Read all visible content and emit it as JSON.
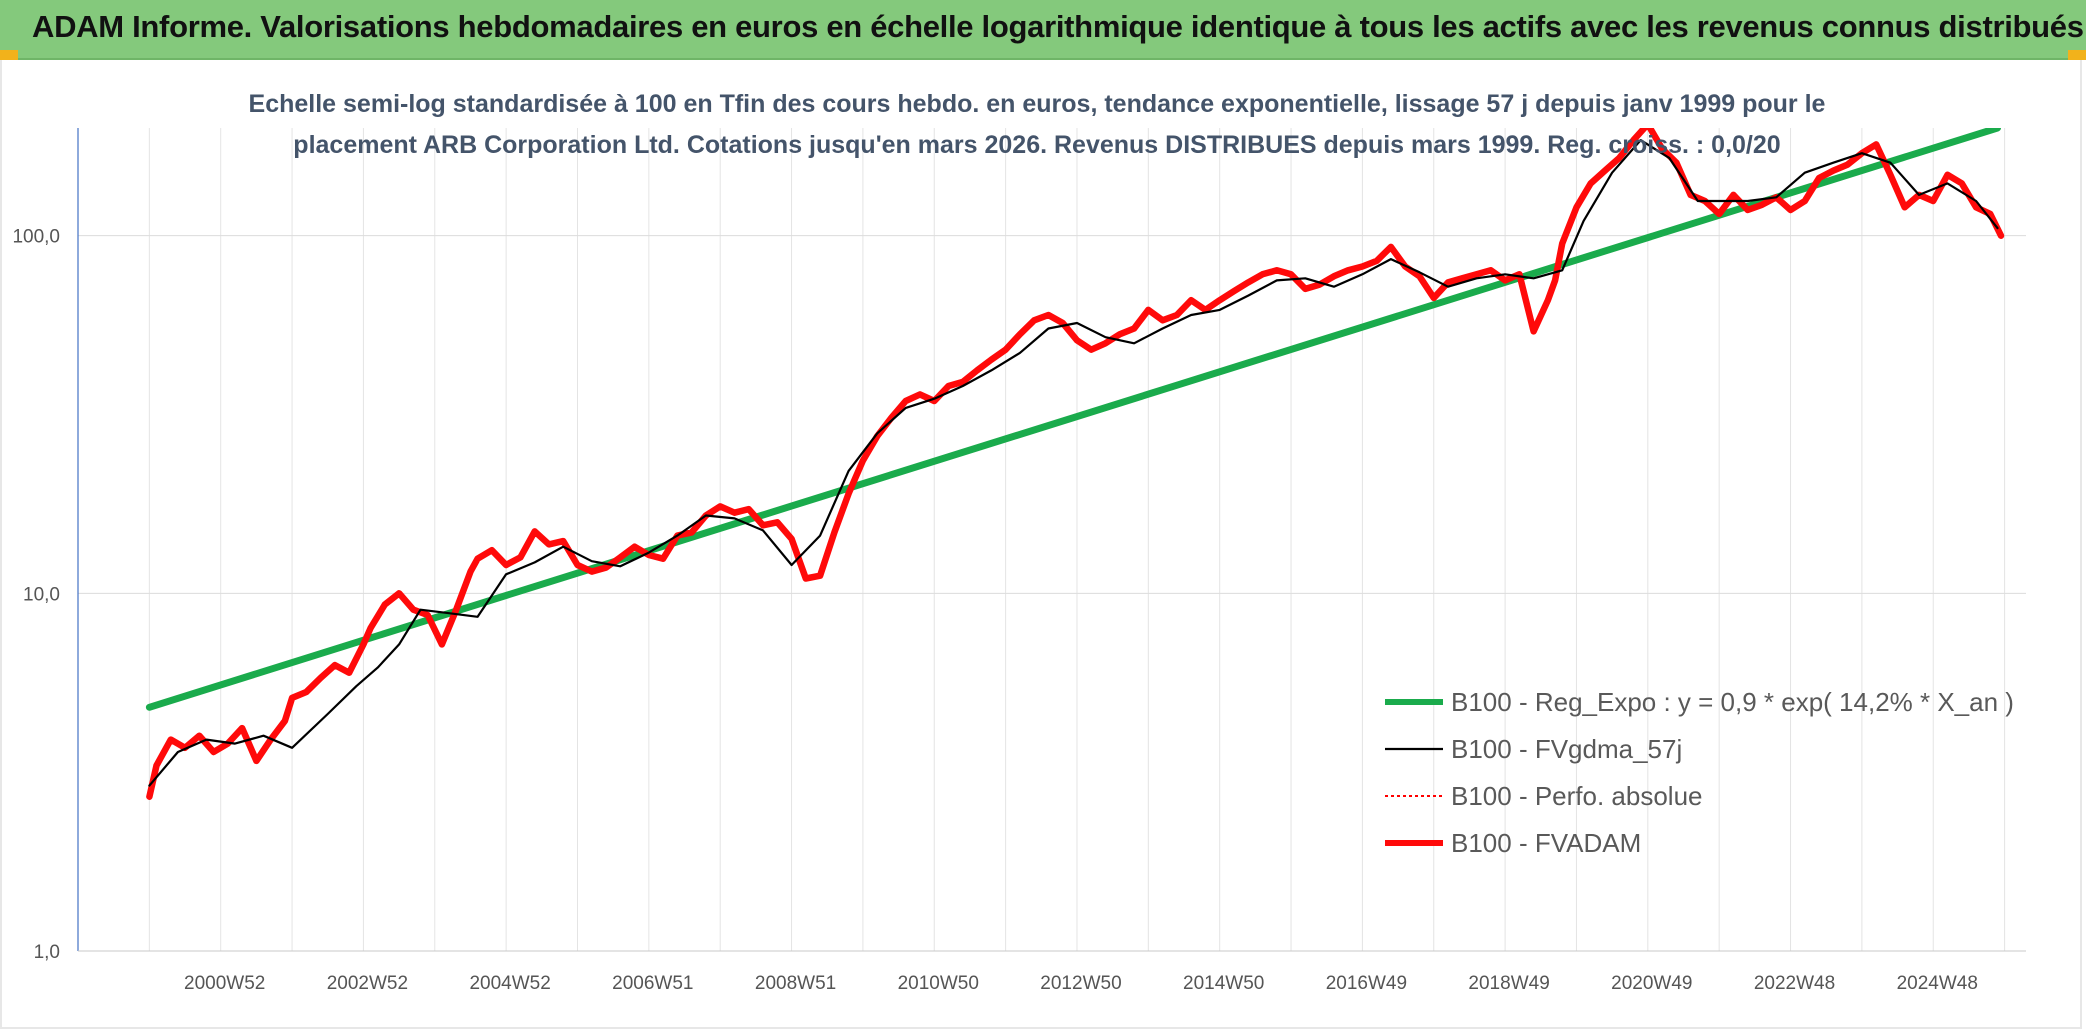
{
  "header": {
    "title": "ADAM Informe. Valorisations hebdomadaires en euros en échelle logarithmique identique à tous les actifs avec les revenus connus distribués"
  },
  "colors": {
    "header_bg": "#84c97c",
    "corner_accent": "#f2b21b",
    "regression": "#1aab4c",
    "fvgdma": "#000000",
    "perfo": "#ff0000",
    "fvadam": "#ff0a0a"
  },
  "chart_data": {
    "type": "line",
    "title_lines": [
      "Echelle semi-log standardisée à 100 en Tfin des cours hebdo. en euros, tendance exponentielle, lissage 57 j depuis janv 1999 pour le",
      "placement ARB Corporation Ltd. Cotations jusqu'en mars 2026. Revenus DISTRIBUES depuis mars 1999. Reg. croiss. : 0,0/20"
    ],
    "y_scale": "log",
    "ylim": [
      1,
      200
    ],
    "y_ticks": [
      {
        "value": 1,
        "label": "1,0"
      },
      {
        "value": 10,
        "label": "10,0"
      },
      {
        "value": 100,
        "label": "100,0"
      }
    ],
    "xlim": [
      1999.0,
      2026.3
    ],
    "x_ticks": [
      {
        "x": 2001.0,
        "label": "2000W52"
      },
      {
        "x": 2003.0,
        "label": "2002W52"
      },
      {
        "x": 2005.0,
        "label": "2004W52"
      },
      {
        "x": 2007.0,
        "label": "2006W51"
      },
      {
        "x": 2009.0,
        "label": "2008W51"
      },
      {
        "x": 2011.0,
        "label": "2010W50"
      },
      {
        "x": 2013.0,
        "label": "2012W50"
      },
      {
        "x": 2015.0,
        "label": "2014W50"
      },
      {
        "x": 2017.0,
        "label": "2016W49"
      },
      {
        "x": 2019.0,
        "label": "2018W49"
      },
      {
        "x": 2021.0,
        "label": "2020W49"
      },
      {
        "x": 2023.0,
        "label": "2022W48"
      },
      {
        "x": 2025.0,
        "label": "2024W48"
      }
    ],
    "grid": "vertical and horizontal, light gray",
    "legend_position": "lower-right",
    "series": [
      {
        "key": "regression",
        "name": "B100 - Reg_Expo : y = 0,9 * exp( 14,2% *  X_an )",
        "style": "solid-thick",
        "x": [
          2000.0,
          2025.9
        ],
        "y": [
          4.8,
          200
        ]
      },
      {
        "key": "fvgdma",
        "name": "B100 - FVgdma_57j",
        "style": "solid-thin",
        "x": [
          2000.0,
          2000.4,
          2000.8,
          2001.2,
          2001.6,
          2002.0,
          2002.5,
          2002.9,
          2003.2,
          2003.5,
          2003.8,
          2004.2,
          2004.6,
          2005.0,
          2005.4,
          2005.8,
          2006.2,
          2006.6,
          2007.0,
          2007.4,
          2007.8,
          2008.2,
          2008.6,
          2009.0,
          2009.4,
          2009.8,
          2010.2,
          2010.6,
          2011.0,
          2011.4,
          2011.8,
          2012.2,
          2012.6,
          2013.0,
          2013.4,
          2013.8,
          2014.2,
          2014.6,
          2015.0,
          2015.4,
          2015.8,
          2016.2,
          2016.6,
          2017.0,
          2017.4,
          2017.8,
          2018.2,
          2018.6,
          2019.0,
          2019.4,
          2019.8,
          2020.1,
          2020.5,
          2020.9,
          2021.3,
          2021.7,
          2022.0,
          2022.4,
          2022.8,
          2023.2,
          2023.6,
          2024.0,
          2024.4,
          2024.8,
          2025.2,
          2025.6,
          2025.9
        ],
        "y": [
          2.9,
          3.6,
          3.9,
          3.8,
          4.0,
          3.7,
          4.6,
          5.5,
          6.2,
          7.2,
          9.0,
          8.8,
          8.6,
          11.3,
          12.2,
          13.5,
          12.3,
          11.9,
          13.0,
          14.5,
          16.5,
          16.2,
          15.0,
          12.0,
          14.5,
          22.0,
          28.0,
          33.0,
          35.0,
          38.0,
          42.0,
          47.0,
          55.0,
          57.0,
          52.0,
          50.0,
          55.0,
          60.0,
          62.0,
          68.0,
          75.0,
          76.0,
          72.0,
          78.0,
          86.0,
          79.0,
          72.0,
          76.0,
          78.0,
          76.0,
          80.0,
          110.0,
          150.0,
          185.0,
          165.0,
          125.0,
          125.0,
          125.0,
          128.0,
          150.0,
          160.0,
          170.0,
          160.0,
          130.0,
          140.0,
          125.0,
          105.0
        ]
      },
      {
        "key": "perfo",
        "name": "B100 - Perfo. absolue",
        "style": "dotted"
      },
      {
        "key": "fvadam",
        "name": "B100 - FVADAM",
        "style": "solid-thick",
        "x": [
          2000.0,
          2000.1,
          2000.3,
          2000.5,
          2000.7,
          2000.9,
          2001.1,
          2001.3,
          2001.5,
          2001.7,
          2001.9,
          2002.0,
          2002.2,
          2002.4,
          2002.6,
          2002.8,
          2003.0,
          2003.1,
          2003.3,
          2003.5,
          2003.7,
          2003.9,
          2004.1,
          2004.3,
          2004.5,
          2004.6,
          2004.8,
          2005.0,
          2005.2,
          2005.4,
          2005.6,
          2005.8,
          2006.0,
          2006.2,
          2006.4,
          2006.6,
          2006.8,
          2007.0,
          2007.2,
          2007.4,
          2007.6,
          2007.8,
          2008.0,
          2008.2,
          2008.4,
          2008.6,
          2008.8,
          2009.0,
          2009.2,
          2009.4,
          2009.6,
          2009.8,
          2010.0,
          2010.2,
          2010.4,
          2010.6,
          2010.8,
          2011.0,
          2011.2,
          2011.4,
          2011.6,
          2011.8,
          2012.0,
          2012.2,
          2012.4,
          2012.6,
          2012.8,
          2013.0,
          2013.2,
          2013.4,
          2013.6,
          2013.8,
          2014.0,
          2014.2,
          2014.4,
          2014.6,
          2014.8,
          2015.0,
          2015.2,
          2015.4,
          2015.6,
          2015.8,
          2016.0,
          2016.2,
          2016.4,
          2016.6,
          2016.8,
          2017.0,
          2017.2,
          2017.4,
          2017.6,
          2017.8,
          2018.0,
          2018.2,
          2018.4,
          2018.6,
          2018.8,
          2019.0,
          2019.2,
          2019.4,
          2019.6,
          2019.7,
          2019.8,
          2020.0,
          2020.2,
          2020.4,
          2020.6,
          2020.8,
          2021.0,
          2021.2,
          2021.4,
          2021.6,
          2021.8,
          2022.0,
          2022.2,
          2022.4,
          2022.6,
          2022.8,
          2023.0,
          2023.2,
          2023.4,
          2023.6,
          2023.8,
          2024.0,
          2024.2,
          2024.4,
          2024.6,
          2024.8,
          2025.0,
          2025.2,
          2025.4,
          2025.6,
          2025.8,
          2025.95
        ],
        "y": [
          2.7,
          3.3,
          3.9,
          3.7,
          4.0,
          3.6,
          3.8,
          4.2,
          3.4,
          3.9,
          4.4,
          5.1,
          5.3,
          5.8,
          6.3,
          6.0,
          7.2,
          8.0,
          9.3,
          10.0,
          9.0,
          8.7,
          7.2,
          9.0,
          11.5,
          12.5,
          13.2,
          12.0,
          12.6,
          14.9,
          13.7,
          14.0,
          12.0,
          11.5,
          11.8,
          12.6,
          13.5,
          12.8,
          12.5,
          14.5,
          14.8,
          16.5,
          17.5,
          16.8,
          17.2,
          15.5,
          15.8,
          14.2,
          11.0,
          11.2,
          14.8,
          19.0,
          23.5,
          27.5,
          31.0,
          34.5,
          36.0,
          34.5,
          38.0,
          39.0,
          42.0,
          45.0,
          48.0,
          53.0,
          58.0,
          60.0,
          57.0,
          51.0,
          48.0,
          50.0,
          53.0,
          55.0,
          62.0,
          58.0,
          60.0,
          66.0,
          62.0,
          66.0,
          70.0,
          74.0,
          78.0,
          80.0,
          78.0,
          71.0,
          73.0,
          77.0,
          80.0,
          82.0,
          85.0,
          93.0,
          82.0,
          77.0,
          67.0,
          74.0,
          76.0,
          78.0,
          80.0,
          75.0,
          78.0,
          54.0,
          66.0,
          75.0,
          95.0,
          120.0,
          140.0,
          152.0,
          165.0,
          185.0,
          205.0,
          175.0,
          160.0,
          130.0,
          125.0,
          115.0,
          130.0,
          118.0,
          122.0,
          128.0,
          118.0,
          125.0,
          145.0,
          152.0,
          158.0,
          170.0,
          180.0,
          148.0,
          120.0,
          130.0,
          125.0,
          148.0,
          140.0,
          120.0,
          115.0,
          100.0
        ]
      }
    ]
  }
}
